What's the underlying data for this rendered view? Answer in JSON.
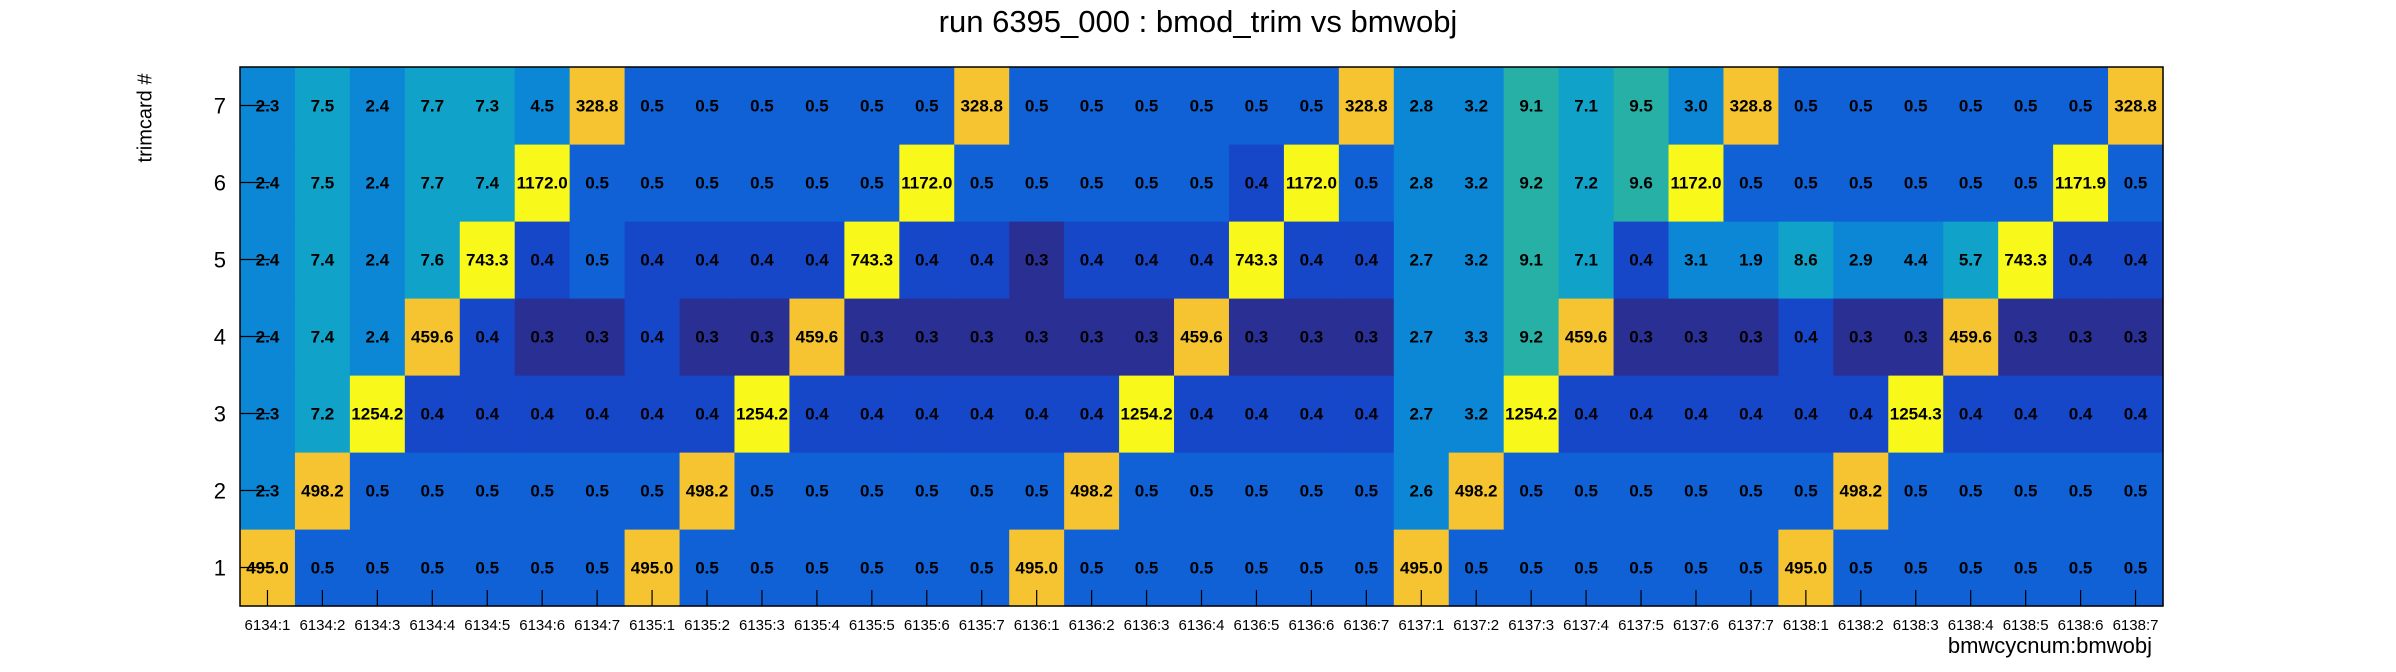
{
  "chart_data": {
    "type": "heatmap",
    "title": "run 6395_000 : bmod_trim vs bmwobj",
    "xlabel": "bmwcycnum:bmwobj",
    "ylabel": "trimcard #",
    "x_categories": [
      "6134:1",
      "6134:2",
      "6134:3",
      "6134:4",
      "6134:5",
      "6134:6",
      "6134:7",
      "6135:1",
      "6135:2",
      "6135:3",
      "6135:4",
      "6135:5",
      "6135:6",
      "6135:7",
      "6136:1",
      "6136:2",
      "6136:3",
      "6136:4",
      "6136:5",
      "6136:6",
      "6136:7",
      "6137:1",
      "6137:2",
      "6137:3",
      "6137:4",
      "6137:5",
      "6137:6",
      "6137:7",
      "6138:1",
      "6138:2",
      "6138:3",
      "6138:4",
      "6138:5",
      "6138:6",
      "6138:7"
    ],
    "y_categories": [
      "1",
      "2",
      "3",
      "4",
      "5",
      "6",
      "7"
    ],
    "rows": [
      {
        "y": "1",
        "values": [
          "495.0",
          "0.5",
          "0.5",
          "0.5",
          "0.5",
          "0.5",
          "0.5",
          "495.0",
          "0.5",
          "0.5",
          "0.5",
          "0.5",
          "0.5",
          "0.5",
          "495.0",
          "0.5",
          "0.5",
          "0.5",
          "0.5",
          "0.5",
          "0.5",
          "495.0",
          "0.5",
          "0.5",
          "0.5",
          "0.5",
          "0.5",
          "0.5",
          "495.0",
          "0.5",
          "0.5",
          "0.5",
          "0.5",
          "0.5",
          "0.5"
        ]
      },
      {
        "y": "2",
        "values": [
          "2.3",
          "498.2",
          "0.5",
          "0.5",
          "0.5",
          "0.5",
          "0.5",
          "0.5",
          "498.2",
          "0.5",
          "0.5",
          "0.5",
          "0.5",
          "0.5",
          "0.5",
          "498.2",
          "0.5",
          "0.5",
          "0.5",
          "0.5",
          "0.5",
          "2.6",
          "498.2",
          "0.5",
          "0.5",
          "0.5",
          "0.5",
          "0.5",
          "0.5",
          "498.2",
          "0.5",
          "0.5",
          "0.5",
          "0.5",
          "0.5"
        ]
      },
      {
        "y": "3",
        "values": [
          "2.3",
          "7.2",
          "1254.2",
          "0.4",
          "0.4",
          "0.4",
          "0.4",
          "0.4",
          "0.4",
          "1254.2",
          "0.4",
          "0.4",
          "0.4",
          "0.4",
          "0.4",
          "0.4",
          "1254.2",
          "0.4",
          "0.4",
          "0.4",
          "0.4",
          "2.7",
          "3.2",
          "1254.2",
          "0.4",
          "0.4",
          "0.4",
          "0.4",
          "0.4",
          "0.4",
          "1254.3",
          "0.4",
          "0.4",
          "0.4",
          "0.4"
        ]
      },
      {
        "y": "4",
        "values": [
          "2.4",
          "7.4",
          "2.4",
          "459.6",
          "0.4",
          "0.3",
          "0.3",
          "0.4",
          "0.3",
          "0.3",
          "459.6",
          "0.3",
          "0.3",
          "0.3",
          "0.3",
          "0.3",
          "0.3",
          "459.6",
          "0.3",
          "0.3",
          "0.3",
          "2.7",
          "3.3",
          "9.2",
          "459.6",
          "0.3",
          "0.3",
          "0.3",
          "0.4",
          "0.3",
          "0.3",
          "459.6",
          "0.3",
          "0.3",
          "0.3"
        ]
      },
      {
        "y": "5",
        "values": [
          "2.4",
          "7.4",
          "2.4",
          "7.6",
          "743.3",
          "0.4",
          "0.5",
          "0.4",
          "0.4",
          "0.4",
          "0.4",
          "743.3",
          "0.4",
          "0.4",
          "0.3",
          "0.4",
          "0.4",
          "0.4",
          "743.3",
          "0.4",
          "0.4",
          "2.7",
          "3.2",
          "9.1",
          "7.1",
          "0.4",
          "3.1",
          "1.9",
          "8.6",
          "2.9",
          "4.4",
          "5.7",
          "743.3",
          "0.4",
          "0.4"
        ]
      },
      {
        "y": "6",
        "values": [
          "2.4",
          "7.5",
          "2.4",
          "7.7",
          "7.4",
          "1172.0",
          "0.5",
          "0.5",
          "0.5",
          "0.5",
          "0.5",
          "0.5",
          "1172.0",
          "0.5",
          "0.5",
          "0.5",
          "0.5",
          "0.5",
          "0.4",
          "1172.0",
          "0.5",
          "2.8",
          "3.2",
          "9.2",
          "7.2",
          "9.6",
          "1172.0",
          "0.5",
          "0.5",
          "0.5",
          "0.5",
          "0.5",
          "0.5",
          "1171.9",
          "0.5"
        ]
      },
      {
        "y": "7",
        "values": [
          "2.3",
          "7.5",
          "2.4",
          "7.7",
          "7.3",
          "4.5",
          "328.8",
          "0.5",
          "0.5",
          "0.5",
          "0.5",
          "0.5",
          "0.5",
          "328.8",
          "0.5",
          "0.5",
          "0.5",
          "0.5",
          "0.5",
          "0.5",
          "328.8",
          "2.8",
          "3.2",
          "9.1",
          "7.1",
          "9.5",
          "3.0",
          "328.8",
          "0.5",
          "0.5",
          "0.5",
          "0.5",
          "0.5",
          "0.5",
          "328.8"
        ]
      }
    ],
    "ticks_at": [
      "1",
      "2",
      "3",
      "4",
      "5",
      "6",
      "7"
    ],
    "colorscale": [
      "#2a2f94",
      "#1747c9",
      "#1060d6",
      "#0b87d6",
      "#10a2c8",
      "#27b0a6",
      "#f5c430",
      "#f8f81a"
    ],
    "grid": false
  }
}
